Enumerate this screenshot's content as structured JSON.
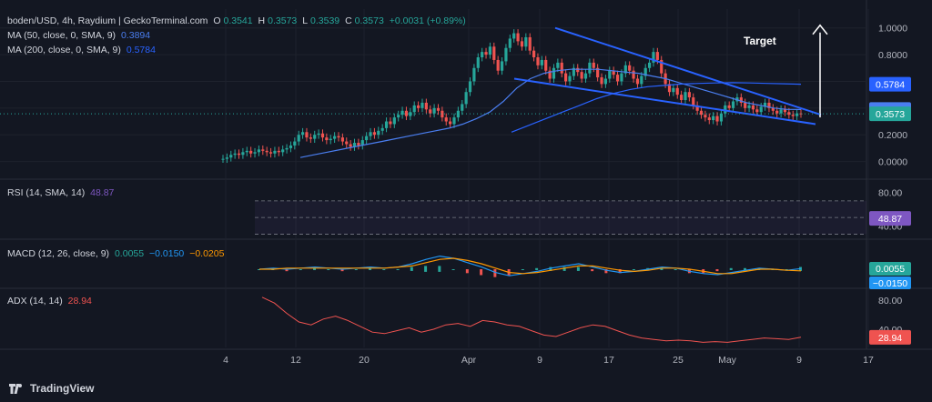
{
  "header": {
    "symbol": "boden/USD, 4h, Raydium | GeckoTerminal.com",
    "o_label": "O",
    "o": "0.3541",
    "h_label": "H",
    "h": "0.3573",
    "l_label": "L",
    "l": "0.3539",
    "c_label": "C",
    "c": "0.3573",
    "chg": "+0.0031 (+0.89%)"
  },
  "ma50": {
    "label": "MA (50, close, 0, SMA, 9)",
    "value": "0.3894",
    "color": "#4a7ef0"
  },
  "ma200": {
    "label": "MA (200, close, 0, SMA, 9)",
    "value": "0.5784",
    "color": "#2962ff"
  },
  "rsi": {
    "label": "RSI (14, SMA, 14)",
    "value": "48.87",
    "color": "#7e57c2"
  },
  "macd": {
    "label": "MACD (12, 26, close, 9)",
    "v1": "0.0055",
    "v2": "−0.0150",
    "v3": "−0.0205"
  },
  "adx": {
    "label": "ADX (14, 14)",
    "value": "28.94",
    "color": "#ef5350"
  },
  "annotation": {
    "target": "Target"
  },
  "brand": "TradingView",
  "colors": {
    "bg": "#131722",
    "up": "#26a69a",
    "down": "#ef5350",
    "wedge": "#2962ff"
  },
  "chart_data": [
    {
      "type": "candlestick",
      "title": "boden/USD, 4h, Raydium",
      "y_ticks": [
        "1.0000",
        "0.8000",
        "0.6000",
        "0.4000",
        "0.2000",
        "0.0000"
      ],
      "ylim": [
        -0.03,
        1.1
      ],
      "x_ticks": [
        "4",
        "12",
        "20",
        "Apr",
        "9",
        "17",
        "25",
        "May",
        "9",
        "17"
      ],
      "price_labels": [
        {
          "value": 0.5784,
          "text": "0.5784",
          "color": "#2962ff"
        },
        {
          "value": 0.3894,
          "text": "0.3894",
          "color": "#4a7ef0"
        },
        {
          "value": 0.3573,
          "text": "0.3573",
          "color": "#26a69a"
        }
      ],
      "close_series": [
        0.02,
        0.03,
        0.05,
        0.06,
        0.05,
        0.07,
        0.08,
        0.06,
        0.07,
        0.09,
        0.08,
        0.07,
        0.06,
        0.08,
        0.07,
        0.09,
        0.1,
        0.12,
        0.15,
        0.2,
        0.22,
        0.18,
        0.17,
        0.2,
        0.21,
        0.18,
        0.16,
        0.17,
        0.19,
        0.18,
        0.15,
        0.13,
        0.11,
        0.14,
        0.12,
        0.16,
        0.19,
        0.22,
        0.2,
        0.23,
        0.25,
        0.3,
        0.28,
        0.33,
        0.35,
        0.38,
        0.34,
        0.37,
        0.42,
        0.4,
        0.44,
        0.39,
        0.36,
        0.4,
        0.38,
        0.33,
        0.3,
        0.28,
        0.33,
        0.38,
        0.43,
        0.52,
        0.6,
        0.7,
        0.78,
        0.82,
        0.8,
        0.86,
        0.76,
        0.68,
        0.75,
        0.85,
        0.92,
        0.96,
        0.9,
        0.86,
        0.93,
        0.83,
        0.78,
        0.72,
        0.76,
        0.68,
        0.62,
        0.7,
        0.74,
        0.66,
        0.6,
        0.64,
        0.7,
        0.67,
        0.62,
        0.66,
        0.74,
        0.7,
        0.63,
        0.58,
        0.62,
        0.68,
        0.65,
        0.6,
        0.66,
        0.72,
        0.68,
        0.62,
        0.58,
        0.64,
        0.7,
        0.74,
        0.82,
        0.76,
        0.66,
        0.58,
        0.52,
        0.55,
        0.5,
        0.46,
        0.52,
        0.48,
        0.42,
        0.38,
        0.35,
        0.33,
        0.31,
        0.34,
        0.3,
        0.36,
        0.42,
        0.4,
        0.45,
        0.48,
        0.44,
        0.4,
        0.42,
        0.39,
        0.37,
        0.41,
        0.44,
        0.4,
        0.38,
        0.36,
        0.39,
        0.37,
        0.35,
        0.34,
        0.36,
        0.3573
      ],
      "ma50_series": [
        0.03,
        0.05,
        0.07,
        0.09,
        0.11,
        0.13,
        0.15,
        0.17,
        0.19,
        0.21,
        0.23,
        0.25,
        0.28,
        0.32,
        0.37,
        0.45,
        0.55,
        0.62,
        0.66,
        0.68,
        0.69,
        0.69,
        0.69,
        0.68,
        0.67,
        0.66,
        0.64,
        0.62,
        0.59,
        0.56,
        0.53,
        0.5,
        0.47,
        0.44,
        0.42,
        0.4,
        0.39,
        0.3894
      ],
      "ma200_series": [
        0.22,
        0.27,
        0.32,
        0.37,
        0.42,
        0.47,
        0.51,
        0.54,
        0.56,
        0.57,
        0.58,
        0.585,
        0.588,
        0.59,
        0.588,
        0.585,
        0.582,
        0.5784
      ],
      "wedge_upper": [
        [
          0.9,
          1.0
        ],
        [
          4.0,
          0.35
        ]
      ],
      "wedge_lower": [
        [
          0.0,
          0.62
        ],
        [
          4.0,
          0.28
        ]
      ],
      "target_arrow": {
        "from": 0.33,
        "to": 1.02
      }
    },
    {
      "type": "line",
      "title": "RSI (14, SMA, 14)",
      "y_ticks": [
        "80.00",
        "40.00"
      ],
      "ylim": [
        25,
        95
      ],
      "bands": [
        70,
        50,
        30
      ],
      "series": [
        {
          "name": "RSI",
          "values": [
            90,
            88,
            56,
            62,
            54,
            60,
            52,
            66,
            58,
            70,
            60,
            55,
            62,
            54,
            66,
            58,
            50,
            58,
            62,
            54,
            56,
            52,
            60,
            54,
            62,
            50,
            58,
            64,
            56,
            52,
            60,
            48,
            54,
            50,
            58,
            46,
            52,
            56,
            50,
            58,
            44,
            50,
            54,
            48,
            56,
            50,
            46,
            52,
            56,
            48,
            54,
            50,
            44,
            52,
            58,
            50,
            46,
            54,
            48.87
          ]
        }
      ]
    },
    {
      "type": "line",
      "title": "MACD (12, 26, close, 9)",
      "price_labels": [
        "0.0055",
        "−0.0150"
      ],
      "series": [
        {
          "name": "MACD",
          "values": [
            0.0,
            0.01,
            0.0,
            0.01,
            0.02,
            0.01,
            0.0,
            0.01,
            0.02,
            0.01,
            0.02,
            0.05,
            0.09,
            0.12,
            0.1,
            0.06,
            0.02,
            -0.03,
            -0.06,
            -0.04,
            -0.02,
            0.01,
            0.03,
            0.05,
            0.02,
            -0.01,
            -0.03,
            -0.02,
            0.0,
            0.02,
            0.01,
            -0.02,
            -0.04,
            -0.05,
            -0.03,
            -0.01,
            0.01,
            0.0,
            -0.01,
            0.0055
          ]
        },
        {
          "name": "Signal",
          "values": [
            0.0,
            0.0,
            0.01,
            0.01,
            0.01,
            0.01,
            0.01,
            0.01,
            0.01,
            0.01,
            0.02,
            0.03,
            0.06,
            0.09,
            0.1,
            0.08,
            0.05,
            0.01,
            -0.03,
            -0.04,
            -0.03,
            -0.01,
            0.01,
            0.03,
            0.03,
            0.01,
            -0.01,
            -0.02,
            -0.01,
            0.01,
            0.01,
            0.0,
            -0.02,
            -0.04,
            -0.04,
            -0.02,
            0.0,
            0.0,
            -0.01,
            -0.015
          ]
        }
      ]
    },
    {
      "type": "line",
      "title": "ADX (14, 14)",
      "y_ticks": [
        "80.00",
        "40.00"
      ],
      "ylim": [
        20,
        90
      ],
      "series": [
        {
          "name": "ADX",
          "values": [
            84,
            76,
            62,
            50,
            46,
            54,
            58,
            52,
            44,
            36,
            34,
            38,
            42,
            36,
            40,
            46,
            48,
            44,
            52,
            50,
            46,
            44,
            38,
            32,
            30,
            36,
            42,
            46,
            44,
            38,
            32,
            28,
            26,
            24,
            25,
            24,
            22,
            23,
            22,
            24,
            26,
            28,
            27,
            26,
            28.94
          ]
        }
      ]
    }
  ]
}
